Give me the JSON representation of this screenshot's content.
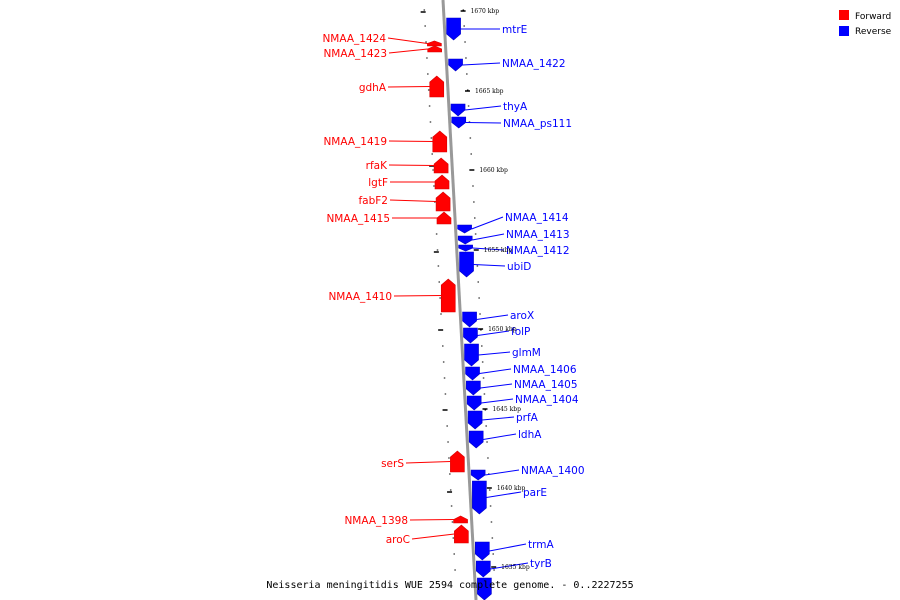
{
  "caption": "Neisseria meningitidis WUE 2594 complete genome. - 0..2227255",
  "colors": {
    "forward": "#ff0000",
    "forward_dark": "#d80000",
    "reverse": "#0000ff",
    "reverse_dark": "#0000c8",
    "backbone": "#999999"
  },
  "legend": [
    {
      "label": "Forward",
      "color": "#ff0000"
    },
    {
      "label": "Reverse",
      "color": "#0000ff"
    }
  ],
  "kbp_markers": [
    "1670 kbp",
    "1665 kbp",
    "1660 kbp",
    "1655 kbp",
    "1650 kbp",
    "1645 kbp",
    "1640 kbp",
    "1635 kbp"
  ],
  "forward_genes": [
    "NMAA_1424",
    "NMAA_1423",
    "gdhA",
    "NMAA_1419",
    "rfaK",
    "lgtF",
    "fabF2",
    "NMAA_1415",
    "NMAA_1410",
    "serS",
    "NMAA_1398",
    "aroC"
  ],
  "reverse_genes": [
    "mtrE",
    "NMAA_1422",
    "thyA",
    "NMAA_ps111",
    "NMAA_1414",
    "NMAA_1413",
    "NMAA_1412",
    "ubiD",
    "aroX",
    "folP",
    "glmM",
    "NMAA_1406",
    "NMAA_1405",
    "NMAA_1404",
    "prfA",
    "ldhA",
    "NMAA_1400",
    "parE",
    "trmA",
    "tyrB"
  ]
}
